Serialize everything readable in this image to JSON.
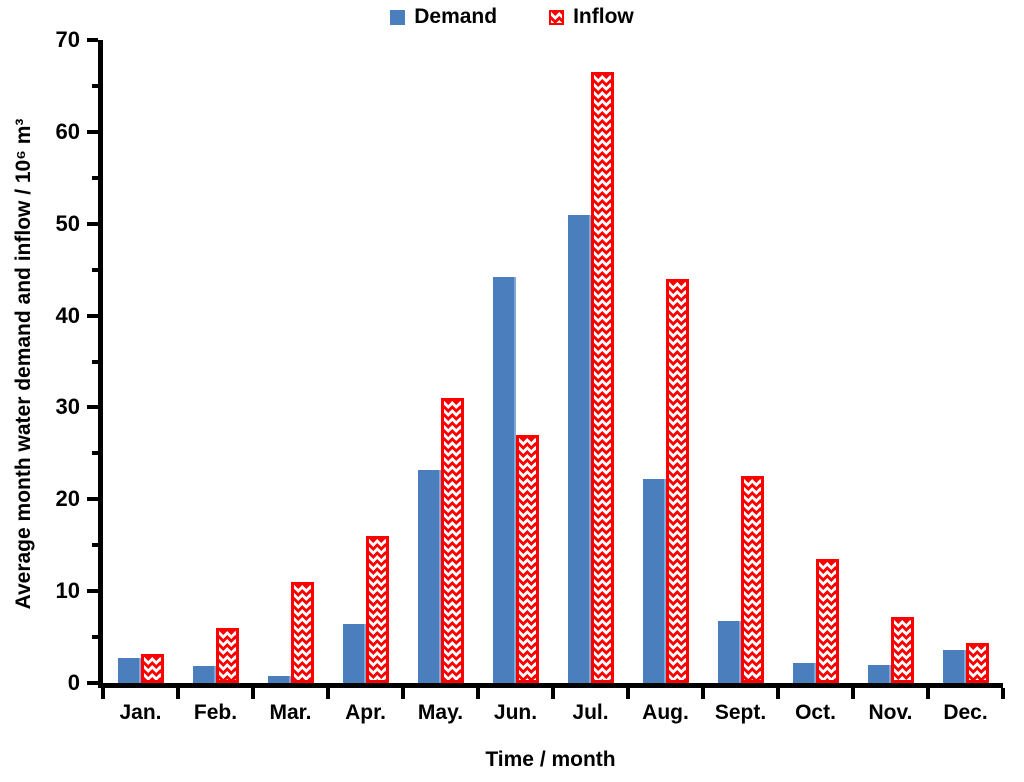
{
  "figure": {
    "background": "#ffffff",
    "axis_color": "#000000"
  },
  "chart_data": {
    "type": "bar",
    "title": "",
    "xlabel": "Time / month",
    "ylabel": "Average month water demand and inflow / 10⁶ m³",
    "categories": [
      "Jan.",
      "Feb.",
      "Mar.",
      "Apr.",
      "May.",
      "Jun.",
      "Jul.",
      "Aug.",
      "Sept.",
      "Oct.",
      "Nov.",
      "Dec."
    ],
    "series": [
      {
        "name": "Demand",
        "color": "#4a7ebd",
        "pattern": "solid",
        "values": [
          2.7,
          1.8,
          0.8,
          6.4,
          23.2,
          44.2,
          51.0,
          22.2,
          6.8,
          2.2,
          2.0,
          3.6
        ]
      },
      {
        "name": "Inflow",
        "color": "#ff0000",
        "pattern": "wave",
        "values": [
          3.2,
          6.0,
          11.0,
          16.0,
          31.0,
          27.0,
          66.5,
          44.0,
          22.5,
          13.5,
          7.2,
          4.4
        ]
      }
    ],
    "ylim": [
      0,
      70
    ],
    "y_major_ticks": [
      0,
      10,
      20,
      30,
      40,
      50,
      60,
      70
    ],
    "y_minor_step": 5,
    "grid": false,
    "legend_position": "top-center"
  }
}
